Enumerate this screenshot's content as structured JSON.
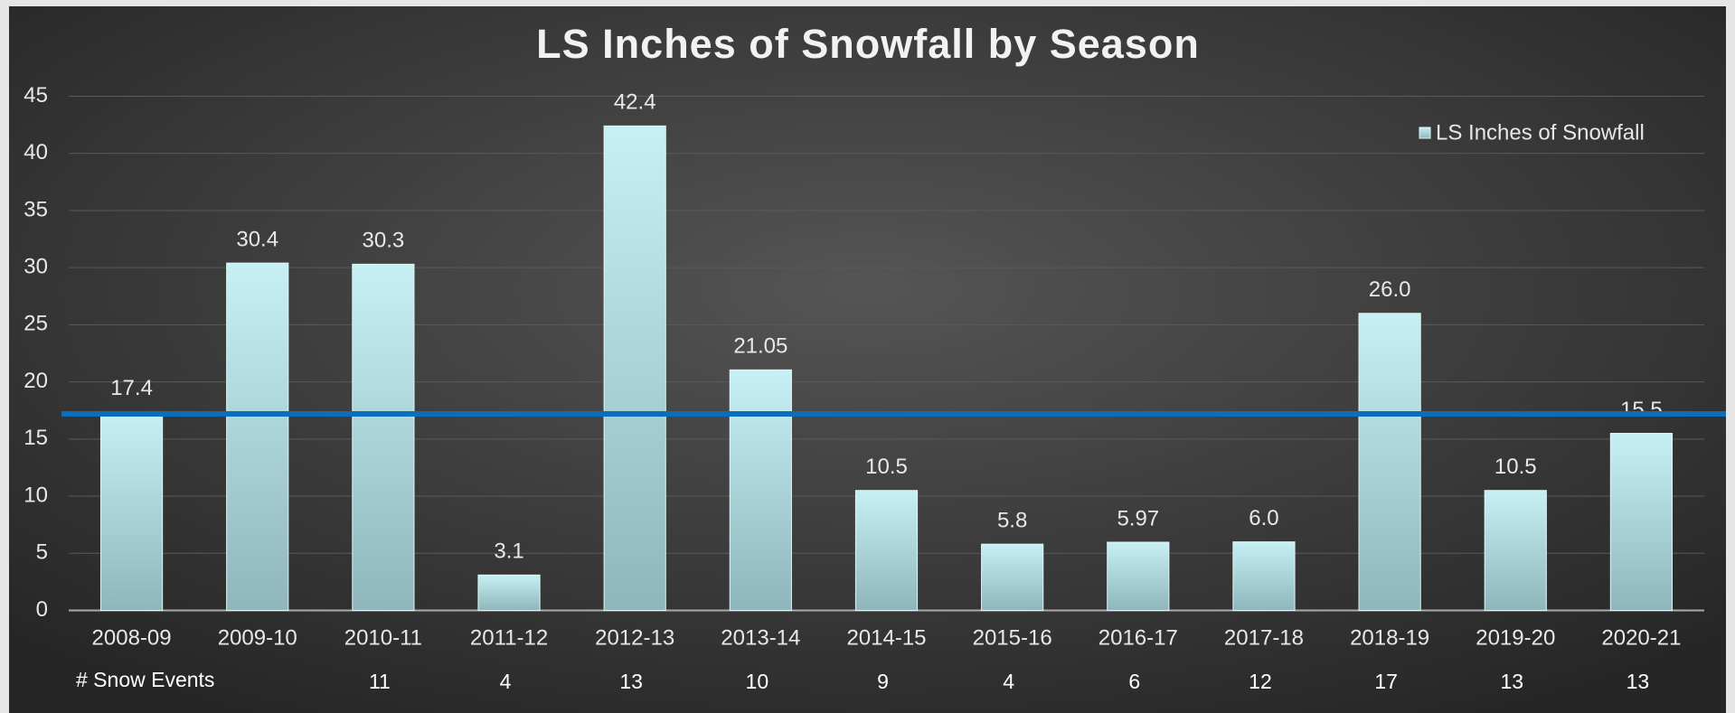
{
  "chart_data": {
    "type": "bar",
    "title": "LS Inches of Snowfall by Season",
    "categories": [
      "2008-09",
      "2009-10",
      "2010-11",
      "2011-12",
      "2012-13",
      "2013-14",
      "2014-15",
      "2015-16",
      "2016-17",
      "2017-18",
      "2018-19",
      "2019-20",
      "2020-21"
    ],
    "series": [
      {
        "name": "LS Inches of Snowfall",
        "color": "#bdebf0",
        "values": [
          17.4,
          30.4,
          30.3,
          3.1,
          42.4,
          21.05,
          10.5,
          5.8,
          5.97,
          6,
          26,
          10.5,
          15.5
        ],
        "value_labels": [
          "17.4",
          "30.4",
          "30.3",
          "3.1",
          "42.4",
          "21.05",
          "10.5",
          "5.8",
          "5.97",
          "6.0",
          "26.0",
          "10.5",
          "15.5"
        ]
      }
    ],
    "reference_line": {
      "value": 17.2,
      "color": "#0a6ebd"
    },
    "table_row": {
      "name": "# Snow Events",
      "values": [
        null,
        null,
        11,
        4,
        13,
        10,
        9,
        4,
        6,
        12,
        17,
        13,
        13
      ]
    },
    "ylim": [
      0,
      45
    ],
    "yticks": [
      0,
      5,
      10,
      15,
      20,
      25,
      30,
      35,
      40,
      45
    ],
    "grid": true,
    "legend": "top-right"
  }
}
